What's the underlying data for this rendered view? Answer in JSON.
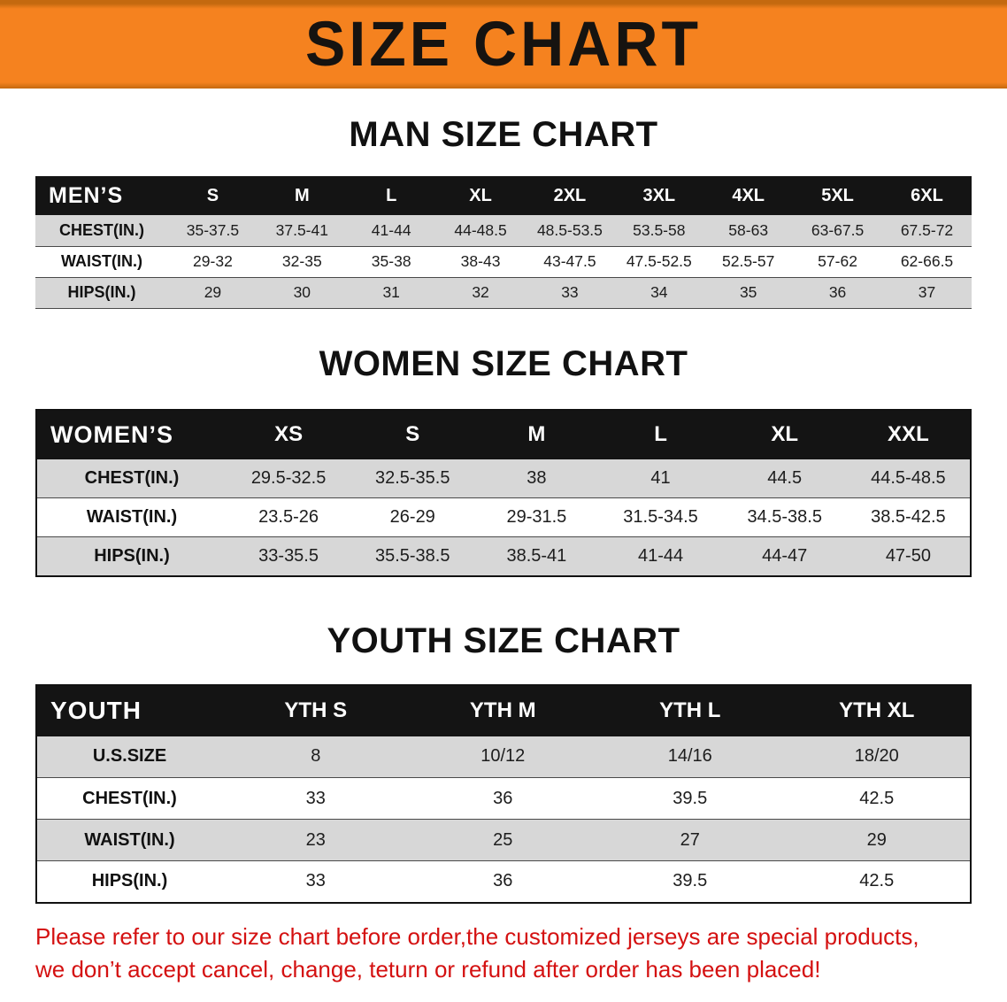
{
  "banner": {
    "title": "SIZE CHART"
  },
  "colors": {
    "banner_bg": "#f5821f",
    "banner_edge": "#c4690f",
    "title_color": "#161310",
    "table_header_bg": "#141414",
    "stripe": "#d7d7d7",
    "notice_color": "#d41111"
  },
  "chart_data": [
    {
      "type": "table",
      "title": "MAN SIZE CHART",
      "corner_label": "MEN’S",
      "columns": [
        "S",
        "M",
        "L",
        "XL",
        "2XL",
        "3XL",
        "4XL",
        "5XL",
        "6XL"
      ],
      "rows": [
        {
          "label": "CHEST(IN.)",
          "values": [
            "35-37.5",
            "37.5-41",
            "41-44",
            "44-48.5",
            "48.5-53.5",
            "53.5-58",
            "58-63",
            "63-67.5",
            "67.5-72"
          ]
        },
        {
          "label": "WAIST(IN.)",
          "values": [
            "29-32",
            "32-35",
            "35-38",
            "38-43",
            "43-47.5",
            "47.5-52.5",
            "52.5-57",
            "57-62",
            "62-66.5"
          ]
        },
        {
          "label": "HIPS(IN.)",
          "values": [
            "29",
            "30",
            "31",
            "32",
            "33",
            "34",
            "35",
            "36",
            "37"
          ]
        }
      ]
    },
    {
      "type": "table",
      "title": "WOMEN SIZE CHART",
      "corner_label": "WOMEN’S",
      "columns": [
        "XS",
        "S",
        "M",
        "L",
        "XL",
        "XXL"
      ],
      "rows": [
        {
          "label": "CHEST(IN.)",
          "values": [
            "29.5-32.5",
            "32.5-35.5",
            "38",
            "41",
            "44.5",
            "44.5-48.5"
          ]
        },
        {
          "label": "WAIST(IN.)",
          "values": [
            "23.5-26",
            "26-29",
            "29-31.5",
            "31.5-34.5",
            "34.5-38.5",
            "38.5-42.5"
          ]
        },
        {
          "label": "HIPS(IN.)",
          "values": [
            "33-35.5",
            "35.5-38.5",
            "38.5-41",
            "41-44",
            "44-47",
            "47-50"
          ]
        }
      ]
    },
    {
      "type": "table",
      "title": "YOUTH SIZE CHART",
      "corner_label": "YOUTH",
      "columns": [
        "YTH S",
        "YTH M",
        "YTH L",
        "YTH XL"
      ],
      "rows": [
        {
          "label": "U.S.SIZE",
          "values": [
            "8",
            "10/12",
            "14/16",
            "18/20"
          ]
        },
        {
          "label": "CHEST(IN.)",
          "values": [
            "33",
            "36",
            "39.5",
            "42.5"
          ]
        },
        {
          "label": "WAIST(IN.)",
          "values": [
            "23",
            "25",
            "27",
            "29"
          ]
        },
        {
          "label": "HIPS(IN.)",
          "values": [
            "33",
            "36",
            "39.5",
            "42.5"
          ]
        }
      ]
    }
  ],
  "footer": {
    "lines": [
      "Please refer to our size chart before order,the customized jerseys are special products,",
      "we don’t accept cancel, change, teturn or refund after order has been placed!"
    ]
  }
}
